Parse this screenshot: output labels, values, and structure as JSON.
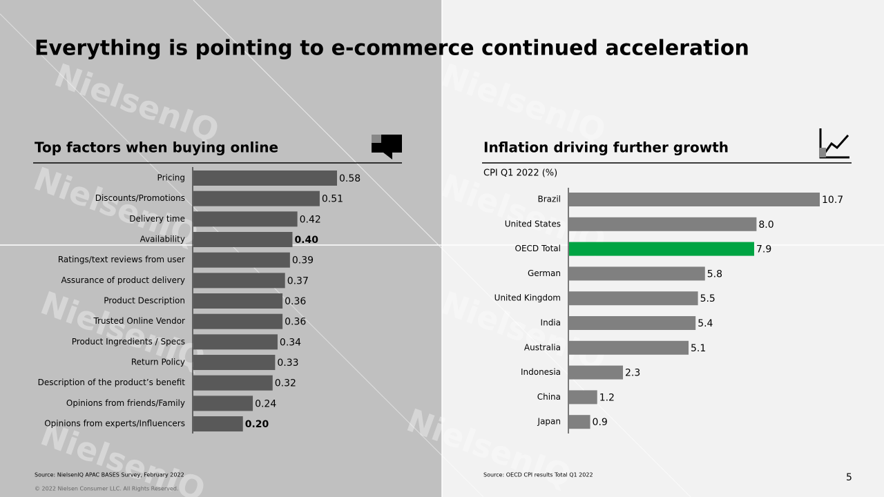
{
  "title": "Everything is pointing to e-commerce continued acceleration",
  "watermark": "NielsenIQ",
  "chart_data": [
    {
      "type": "bar",
      "orientation": "horizontal",
      "title": "Top factors when buying online",
      "categories": [
        "Pricing",
        "Discounts/Promotions",
        "Delivery time",
        "Availability",
        "Ratings/text reviews from user",
        "Assurance of product delivery",
        "Product Description",
        "Trusted Online Vendor",
        "Product Ingredients / Specs",
        "Return Policy",
        "Description of the product’s benefit",
        "Opinions from friends/Family",
        "Opinions from experts/Influencers"
      ],
      "values": [
        0.58,
        0.51,
        0.42,
        0.4,
        0.39,
        0.37,
        0.36,
        0.36,
        0.34,
        0.33,
        0.32,
        0.24,
        0.2
      ],
      "value_labels": [
        "0.58",
        "0.51",
        "0.42",
        "0.40",
        "0.39",
        "0.37",
        "0.36",
        "0.36",
        "0.34",
        "0.33",
        "0.32",
        "0.24",
        "0.20"
      ],
      "bold_labels": [
        3,
        12
      ],
      "color": "#595959",
      "source": "Source: NielsenIQ APAC BASES Survey, February 2022"
    },
    {
      "type": "bar",
      "orientation": "horizontal",
      "title": "Inflation driving further growth",
      "subtitle": "CPI Q1 2022 (%)",
      "categories": [
        "Brazil",
        "United States",
        "OECD Total",
        "German",
        "United Kingdom",
        "India",
        "Australia",
        "Indonesia",
        "China",
        "Japan"
      ],
      "values": [
        10.7,
        8.0,
        7.9,
        5.8,
        5.5,
        5.4,
        5.1,
        2.3,
        1.2,
        0.9
      ],
      "value_labels": [
        "10.7",
        "8.0",
        "7.9",
        "5.8",
        "5.5",
        "5.4",
        "5.1",
        "2.3",
        "1.2",
        "0.9"
      ],
      "colors": [
        "#808080",
        "#808080",
        "#00a443",
        "#808080",
        "#808080",
        "#808080",
        "#808080",
        "#808080",
        "#808080",
        "#808080"
      ],
      "source": "Source: OECD CPI results Total Q1 2022"
    }
  ],
  "copyright": "© 2022 Nielsen Consumer LLC. All Rights Reserved.",
  "page_number": "5"
}
